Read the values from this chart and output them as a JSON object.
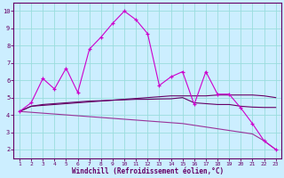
{
  "xlabel": "Windchill (Refroidissement éolien,°C)",
  "x": [
    1,
    2,
    3,
    4,
    5,
    6,
    7,
    8,
    9,
    10,
    11,
    12,
    13,
    14,
    15,
    16,
    17,
    18,
    19,
    20,
    21,
    22,
    23
  ],
  "line1": [
    4.2,
    4.7,
    6.1,
    5.5,
    6.7,
    5.3,
    7.8,
    8.5,
    9.3,
    10.0,
    9.5,
    8.7,
    5.7,
    6.2,
    6.5,
    4.6,
    6.5,
    5.2,
    5.2,
    4.4,
    3.5,
    2.5,
    2.0
  ],
  "line2": [
    4.2,
    4.5,
    4.55,
    4.6,
    4.65,
    4.7,
    4.75,
    4.8,
    4.85,
    4.9,
    4.95,
    5.0,
    5.05,
    5.1,
    5.1,
    5.1,
    5.1,
    5.15,
    5.15,
    5.15,
    5.15,
    5.1,
    5.0
  ],
  "line3": [
    4.2,
    4.15,
    4.1,
    4.05,
    4.0,
    3.95,
    3.9,
    3.85,
    3.8,
    3.75,
    3.7,
    3.65,
    3.6,
    3.55,
    3.5,
    3.4,
    3.3,
    3.2,
    3.1,
    3.0,
    2.9,
    2.5,
    2.0
  ],
  "line4": [
    4.2,
    4.5,
    4.6,
    4.65,
    4.7,
    4.75,
    4.8,
    4.82,
    4.85,
    4.87,
    4.9,
    4.9,
    4.92,
    4.93,
    5.0,
    4.7,
    4.65,
    4.6,
    4.6,
    4.5,
    4.45,
    4.43,
    4.43
  ],
  "line_color": "#993399",
  "line1_color": "#cc00cc",
  "line2_color": "#660066",
  "line3_color": "#993399",
  "line4_color": "#660066",
  "bg_color": "#cceeff",
  "grid_color": "#99dddd",
  "ylim": [
    1.5,
    10.5
  ],
  "xlim": [
    0.5,
    23.5
  ],
  "yticks": [
    2,
    3,
    4,
    5,
    6,
    7,
    8,
    9,
    10
  ],
  "xticks": [
    1,
    2,
    3,
    4,
    5,
    6,
    7,
    8,
    9,
    10,
    11,
    12,
    13,
    14,
    15,
    16,
    17,
    18,
    19,
    20,
    21,
    22,
    23
  ],
  "xlabel_color": "#660066",
  "tick_color": "#660066",
  "axis_color": "#660066",
  "marker_color": "#cc00cc"
}
